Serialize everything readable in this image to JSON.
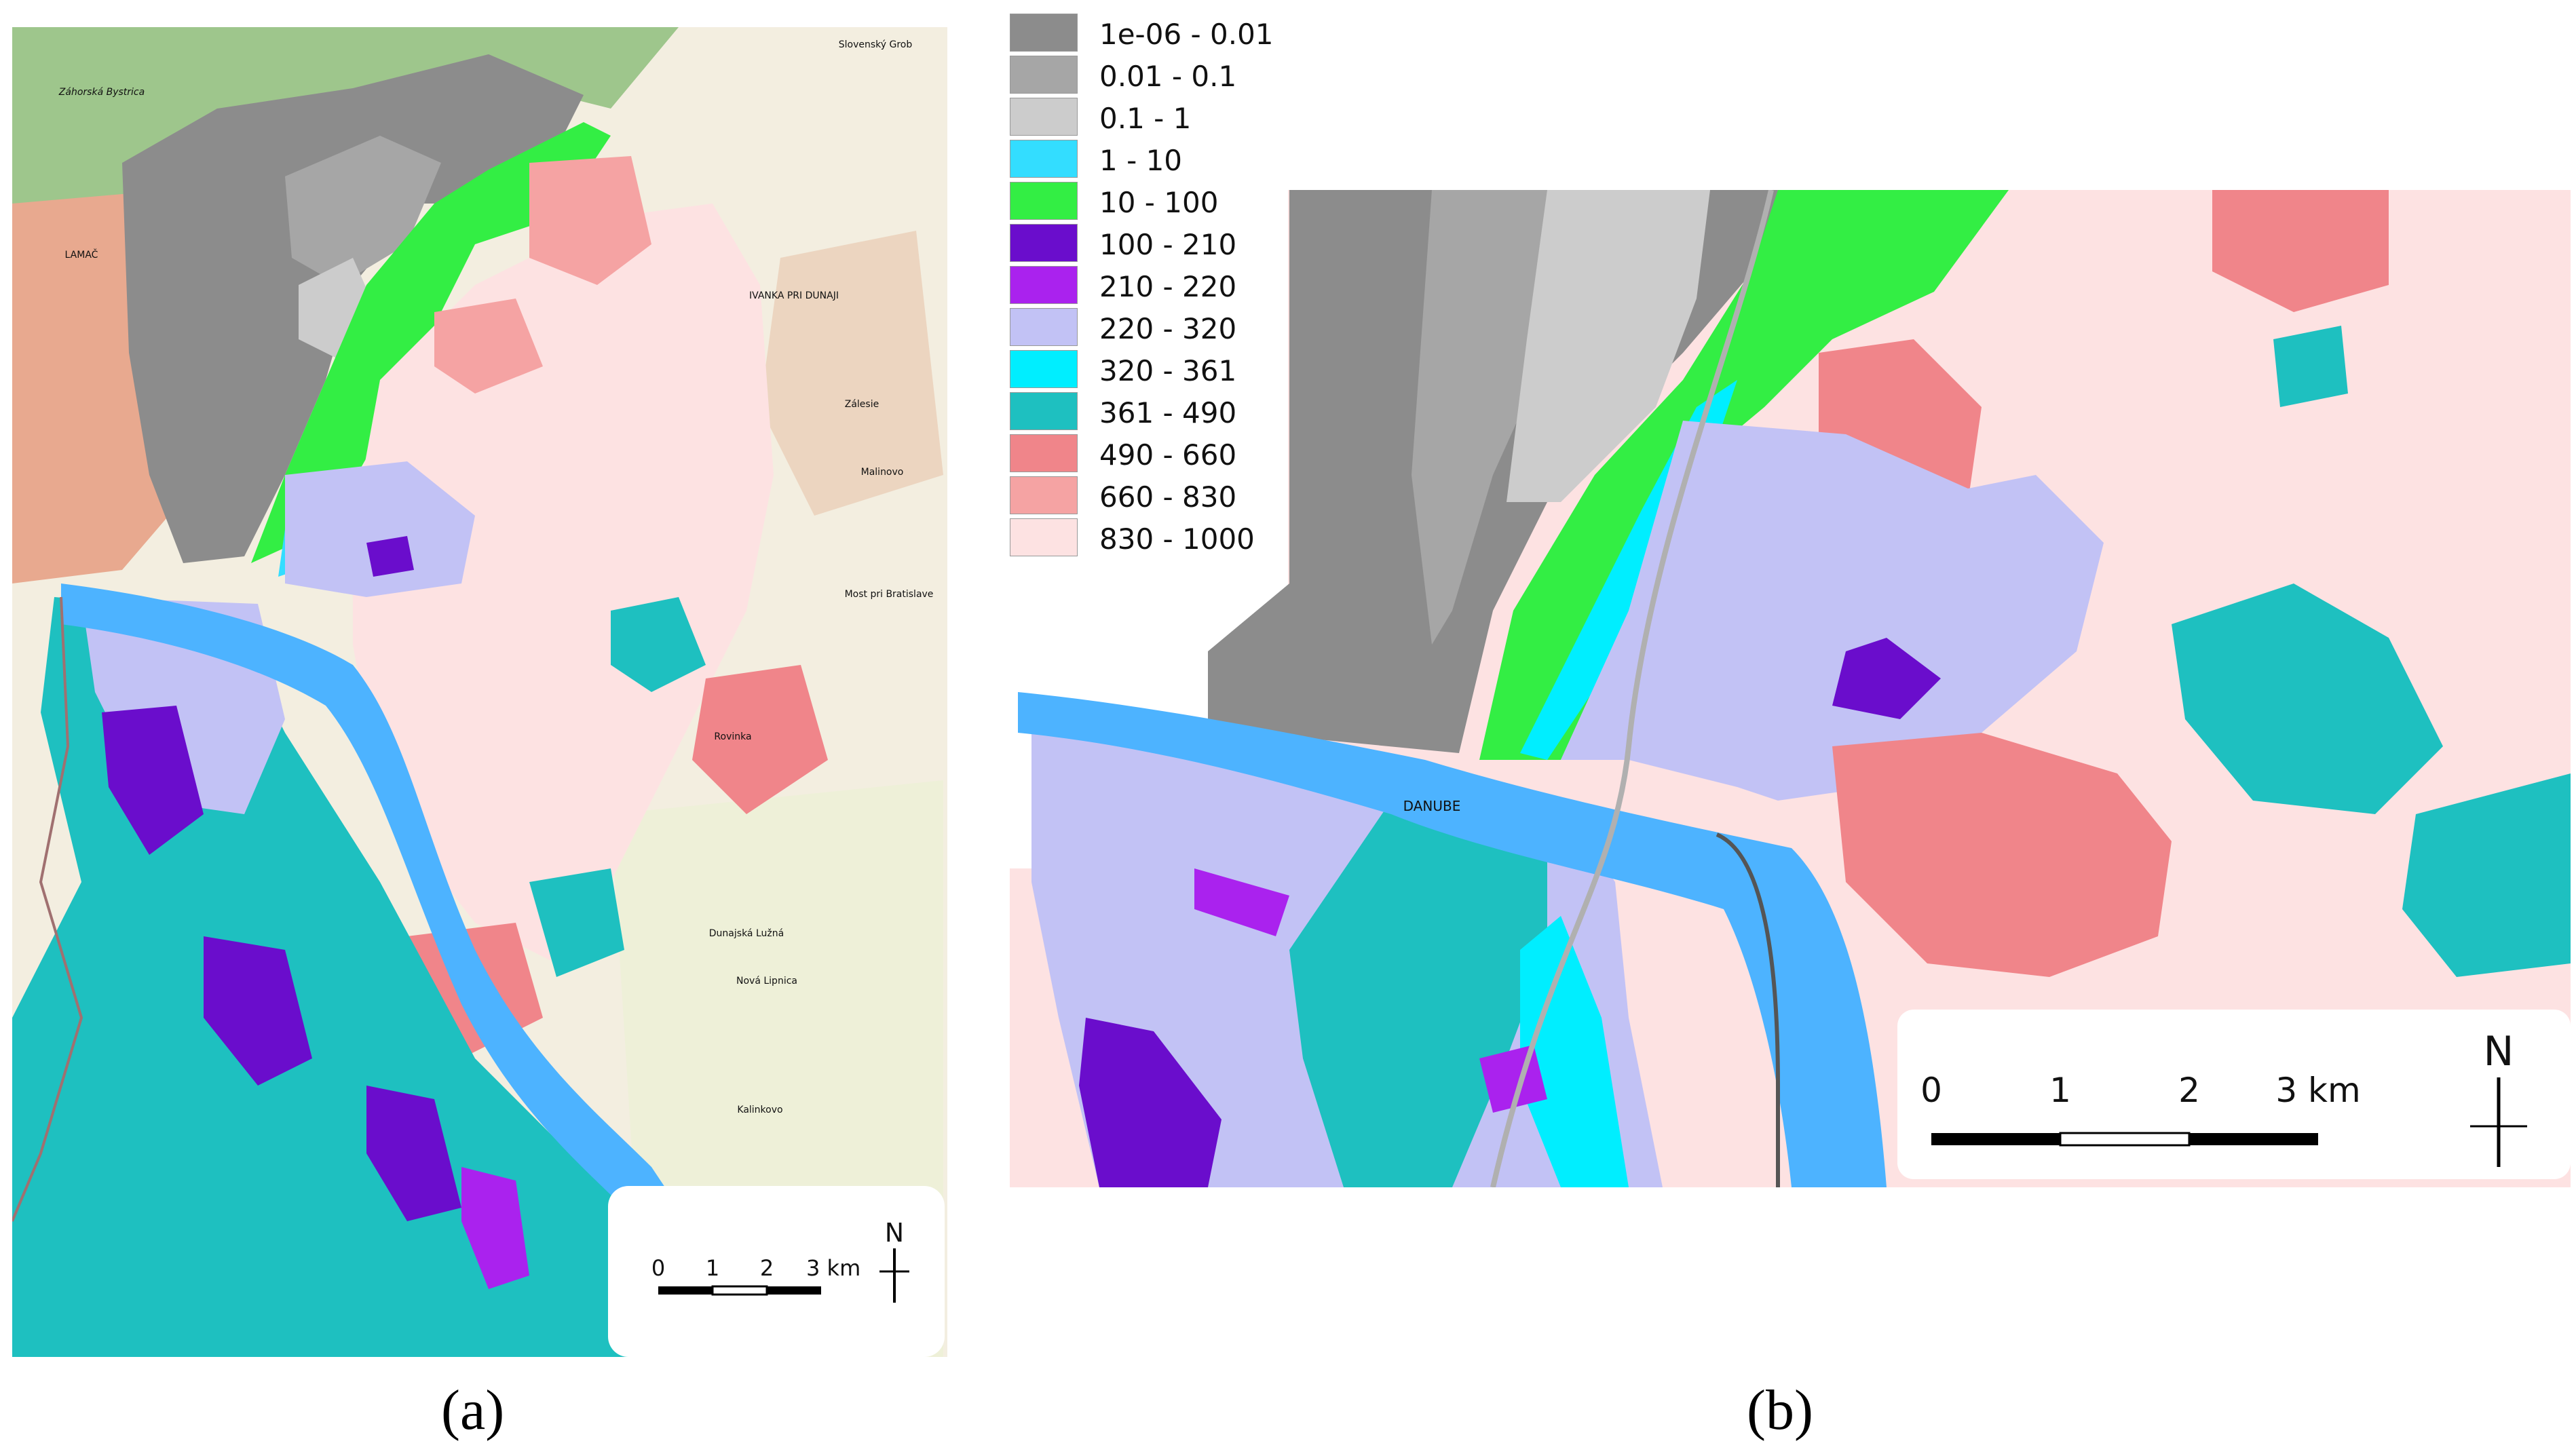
{
  "panels": [
    {
      "caption": "(a)",
      "scale_ticks": [
        "0",
        "1",
        "2",
        "3 km"
      ],
      "north_label": "N",
      "place_names": [
        "Záhorská Bystrica",
        "LAMAČ",
        "Slovenský Grob",
        "IVANKA PRI DUNAJI",
        "Zálesie",
        "Malinovo",
        "Most pri Bratislave",
        "Rovinka",
        "Dunajská Lužná",
        "Nová Lipnica",
        "Kalinkovo"
      ]
    },
    {
      "caption": "(b)",
      "scale_ticks": [
        "0",
        "1",
        "2",
        "3 km"
      ],
      "north_label": "N",
      "river_label": "DANUBE"
    }
  ],
  "legend": [
    {
      "label": "1e-06 - 0.01",
      "color": "#8c8c8c"
    },
    {
      "label": "0.01 - 0.1",
      "color": "#a6a6a6"
    },
    {
      "label": "0.1 - 1",
      "color": "#cccccc"
    },
    {
      "label": "1 - 10",
      "color": "#33ddff"
    },
    {
      "label": "10 - 100",
      "color": "#33ee44"
    },
    {
      "label": "100 - 210",
      "color": "#6a0dcc"
    },
    {
      "label": "210 - 220",
      "color": "#aa22ee"
    },
    {
      "label": "220 - 320",
      "color": "#c2c2f5"
    },
    {
      "label": "320 - 361",
      "color": "#00eeff"
    },
    {
      "label": "361 - 490",
      "color": "#1ec0c0"
    },
    {
      "label": "490 - 660",
      "color": "#f0858a"
    },
    {
      "label": "660 - 830",
      "color": "#f5a3a3"
    },
    {
      "label": "830 - 1000",
      "color": "#fde2e2"
    }
  ]
}
